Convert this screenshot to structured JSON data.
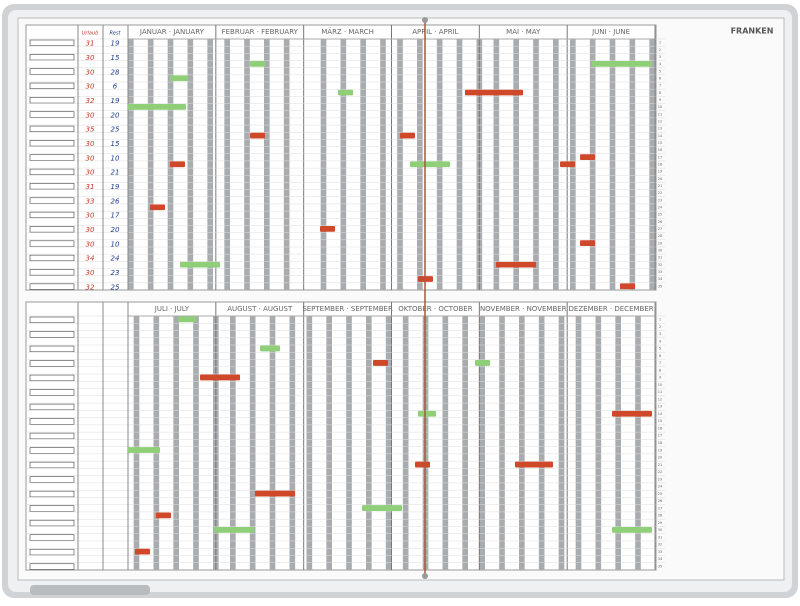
{
  "brand": "FRANKEN",
  "top": {
    "months": [
      "JANUAR · JANUARY",
      "FEBRUAR · FEBRUARY",
      "MÄRZ · MARCH",
      "APRIL · APRIL",
      "MAI · MAY",
      "JUNI · JUNE"
    ],
    "column_headers": [
      "Urlaub",
      "Rest"
    ],
    "entries": [
      [
        31,
        19
      ],
      [
        30,
        15
      ],
      [
        30,
        28
      ],
      [
        30,
        6
      ],
      [
        32,
        19
      ],
      [
        30,
        20
      ],
      [
        35,
        25
      ],
      [
        30,
        15
      ],
      [
        30,
        10
      ],
      [
        30,
        21
      ],
      [
        31,
        19
      ],
      [
        33,
        26
      ],
      [
        30,
        17
      ],
      [
        30,
        20
      ],
      [
        30,
        10
      ],
      [
        34,
        24
      ],
      [
        30,
        23
      ],
      [
        32,
        25
      ]
    ]
  },
  "bottom": {
    "months": [
      "JULI · JULY",
      "AUGUST · AUGUST",
      "SEPTEMBER · SEPTEMBER",
      "OKTOBER · OCTOBER",
      "NOVEMBER · NOVEMBER",
      "DEZEMBER · DECEMBER"
    ]
  },
  "row_numbers": [
    1,
    2,
    3,
    4,
    5,
    6,
    7,
    8,
    9,
    10,
    11,
    12,
    13,
    14,
    15,
    16,
    17,
    18,
    19,
    20,
    21,
    22,
    23,
    24,
    25,
    26,
    27,
    28,
    29,
    30,
    31,
    32,
    33,
    34,
    35
  ]
}
